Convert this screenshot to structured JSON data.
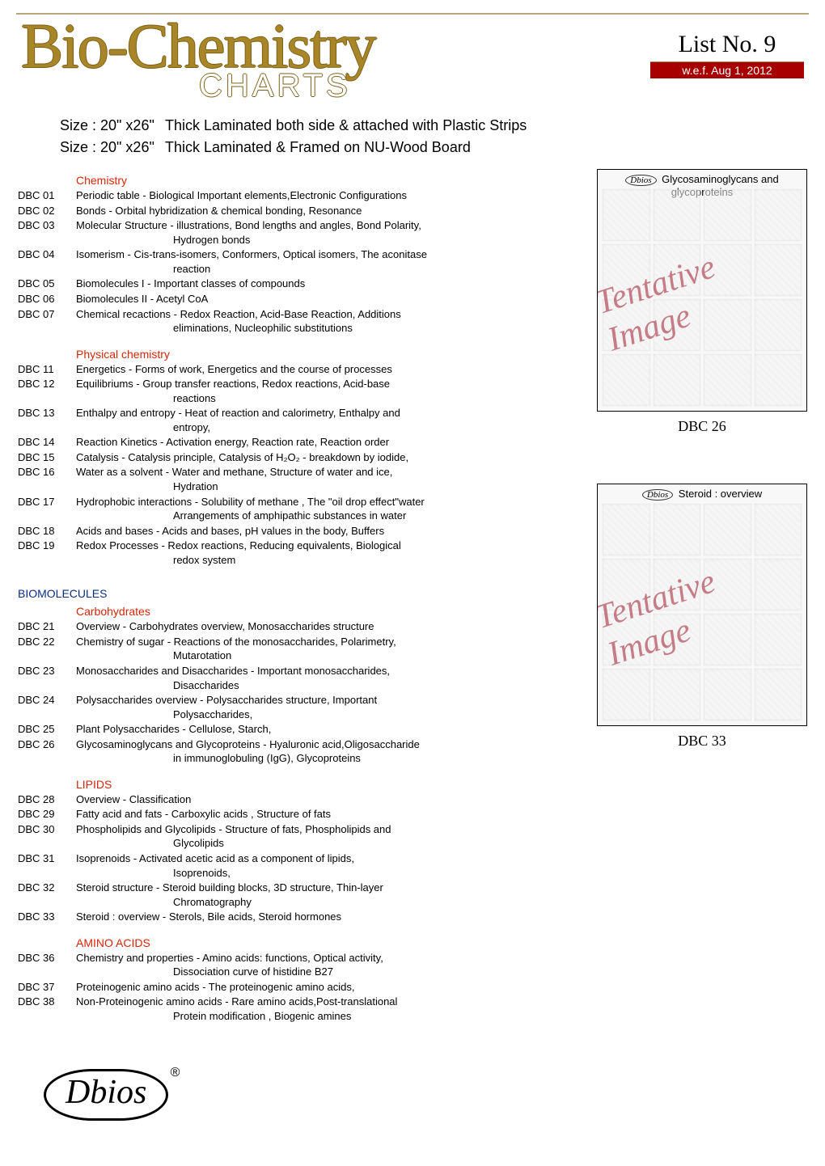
{
  "header": {
    "title_main": "Bio-Chemistry",
    "title_sub": "CHARTS",
    "list_no": "List No. 9",
    "wef": "w.e.f. Aug 1, 2012"
  },
  "sizes": [
    {
      "label": "Size : 20\" x26\"",
      "spec": "Thick Laminated both side & attached with Plastic Strips"
    },
    {
      "label": "Size : 20\" x26\"",
      "spec": "Thick Laminated & Framed on NU-Wood Board"
    }
  ],
  "majors": {
    "biomolecules": "BIOMOLECULES"
  },
  "sections": [
    {
      "minor": "Chemistry",
      "items": [
        {
          "code": "DBC 01",
          "desc": "Periodic table - Biological Important elements,Electronic Configurations"
        },
        {
          "code": "DBC 02",
          "desc": "Bonds - Orbital hybridization & chemical bonding, Resonance"
        },
        {
          "code": "DBC 03",
          "desc": "Molecular Structure - illustrations, Bond lengths and angles, Bond Polarity,",
          "cont": "Hydrogen bonds"
        },
        {
          "code": "DBC 04",
          "desc": "Isomerism - Cis-trans-isomers, Conformers, Optical isomers, The aconitase",
          "cont": "reaction"
        },
        {
          "code": "DBC 05",
          "desc": "Biomolecules I - Important classes of compounds"
        },
        {
          "code": "DBC 06",
          "desc": "Biomolecules II -  Acetyl CoA"
        },
        {
          "code": "DBC 07",
          "desc": "Chemical recactions - Redox Reaction,  Acid-Base Reaction,  Additions",
          "cont": "eliminations, Nucleophilic substitutions"
        }
      ]
    },
    {
      "minor": "Physical chemistry",
      "items": [
        {
          "code": "DBC 11",
          "desc": "Energetics - Forms of work, Energetics and the course of processes"
        },
        {
          "code": "DBC 12",
          "desc": "Equilibriums - Group transfer reactions, Redox reactions,  Acid-base",
          "cont": "reactions"
        },
        {
          "code": "DBC 13",
          "desc": "Enthalpy and entropy - Heat of reaction and calorimetry, Enthalpy and",
          "cont": "entropy,"
        },
        {
          "code": "DBC 14",
          "desc": "Reaction Kinetics - Activation energy, Reaction rate, Reaction order"
        },
        {
          "code": "DBC 15",
          "desc": "Catalysis - Catalysis principle, Catalysis of H₂O₂ - breakdown by iodide,"
        },
        {
          "code": "DBC 16",
          "desc": "Water as a solvent - Water and methane, Structure of water and ice,",
          "cont": "Hydration"
        },
        {
          "code": "DBC 17",
          "desc": "Hydrophobic interactions - Solubility of methane , The \"oil drop effect\"water",
          "cont": "Arrangements of amphipathic substances in water"
        },
        {
          "code": "DBC 18",
          "desc": "Acids and bases -  Acids and bases, pH values in the body, Buffers"
        },
        {
          "code": "DBC 19",
          "desc": "Redox Processes - Redox reactions, Reducing equivalents, Biological",
          "cont": "redox system"
        }
      ]
    },
    {
      "major_ref": "biomolecules",
      "minor": "Carbohydrates",
      "items": [
        {
          "code": "DBC 21",
          "desc": "Overview - Carbohydrates overview, Monosaccharides structure"
        },
        {
          "code": "DBC 22",
          "desc": "Chemistry of sugar - Reactions of the monosaccharides, Polarimetry,",
          "cont": "Mutarotation"
        },
        {
          "code": "DBC 23",
          "desc": "Monosaccharides and Disaccharides - Important monosaccharides,",
          "cont": "Disaccharides"
        },
        {
          "code": "DBC 24",
          "desc": "Polysaccharides overview - Polysaccharides  structure, Important",
          "cont": "Polysaccharides,"
        },
        {
          "code": "DBC 25",
          "desc": "Plant Polysaccharides - Cellulose, Starch,"
        },
        {
          "code": "DBC 26",
          "desc": "Glycosaminoglycans and Glycoproteins - Hyaluronic acid,Oligosaccharide",
          "cont": "in immunoglobuling (IgG), Glycoproteins"
        }
      ]
    },
    {
      "minor": "LIPIDS",
      "items": [
        {
          "code": "DBC 28",
          "desc": "Overview - Classification"
        },
        {
          "code": "DBC 29",
          "desc": "Fatty acid and fats -  Carboxylic acids , Structure of fats"
        },
        {
          "code": "DBC 30",
          "desc": "Phospholipids and Glycolipids - Structure of fats, Phospholipids and",
          "cont": "Glycolipids"
        },
        {
          "code": "DBC 31",
          "desc": "Isoprenoids - Activated acetic acid as a component of lipids,",
          "cont": "Isoprenoids,"
        },
        {
          "code": "DBC 32",
          "desc": "Steroid structure - Steroid building blocks, 3D structure, Thin-layer",
          "cont": "Chromatography"
        },
        {
          "code": "DBC 33",
          "desc": "Steroid : overview - Sterols, Bile acids, Steroid  hormones"
        }
      ]
    },
    {
      "minor": "AMINO ACIDS",
      "items": [
        {
          "code": "DBC 36",
          "desc": "Chemistry and properties - Amino acids: functions, Optical activity,",
          "cont": "Dissociation curve of histidine B27"
        },
        {
          "code": "DBC 37",
          "desc": "Proteinogenic amino acids - The proteinogenic amino acids,"
        },
        {
          "code": "DBC 38",
          "desc": "Non-Proteinogenic amino acids - Rare amino acids,Post-translational",
          "cont": "Protein modification , Biogenic amines"
        }
      ]
    }
  ],
  "samples": [
    {
      "brand": "Dbios",
      "title": "Glycosaminoglycans and glycoproteins",
      "watermark": "Tentative Image",
      "caption": "DBC 26"
    },
    {
      "brand": "Dbios",
      "title": "Steroid : overview",
      "watermark": "Tentative Image",
      "caption": "DBC 33"
    }
  ],
  "logo": {
    "text": "Dbios",
    "reg": "®"
  },
  "colors": {
    "accent_gold": "#a88628",
    "accent_red": "#a80000",
    "minor_head": "#d4270a",
    "major_head": "#0b2e8a",
    "watermark": "#b24a5a"
  }
}
